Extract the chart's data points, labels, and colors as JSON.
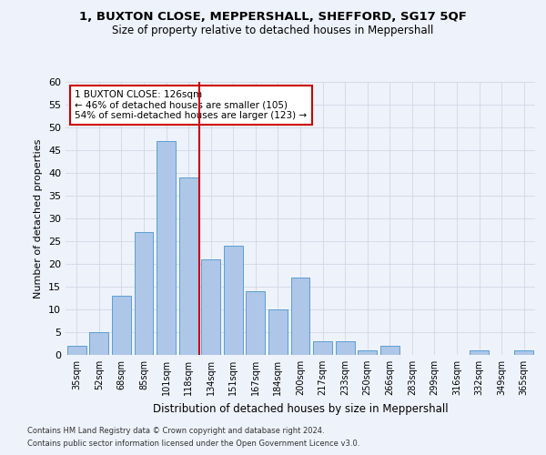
{
  "title1": "1, BUXTON CLOSE, MEPPERSHALL, SHEFFORD, SG17 5QF",
  "title2": "Size of property relative to detached houses in Meppershall",
  "xlabel": "Distribution of detached houses by size in Meppershall",
  "ylabel": "Number of detached properties",
  "footnote1": "Contains HM Land Registry data © Crown copyright and database right 2024.",
  "footnote2": "Contains public sector information licensed under the Open Government Licence v3.0.",
  "bar_labels": [
    "35sqm",
    "52sqm",
    "68sqm",
    "85sqm",
    "101sqm",
    "118sqm",
    "134sqm",
    "151sqm",
    "167sqm",
    "184sqm",
    "200sqm",
    "217sqm",
    "233sqm",
    "250sqm",
    "266sqm",
    "283sqm",
    "299sqm",
    "316sqm",
    "332sqm",
    "349sqm",
    "365sqm"
  ],
  "bar_values": [
    2,
    5,
    13,
    27,
    47,
    39,
    21,
    24,
    14,
    10,
    17,
    3,
    3,
    1,
    2,
    0,
    0,
    0,
    1,
    0,
    1
  ],
  "bar_color": "#aec6e8",
  "bar_edge_color": "#5a9fd4",
  "vline_x": 5.5,
  "vline_color": "#cc0000",
  "annotation_text": "1 BUXTON CLOSE: 126sqm\n← 46% of detached houses are smaller (105)\n54% of semi-detached houses are larger (123) →",
  "annotation_box_color": "#ffffff",
  "annotation_box_edge": "#cc0000",
  "ylim": [
    0,
    60
  ],
  "yticks": [
    0,
    5,
    10,
    15,
    20,
    25,
    30,
    35,
    40,
    45,
    50,
    55,
    60
  ],
  "grid_color": "#d0d8e8",
  "background_color": "#eef2fa"
}
